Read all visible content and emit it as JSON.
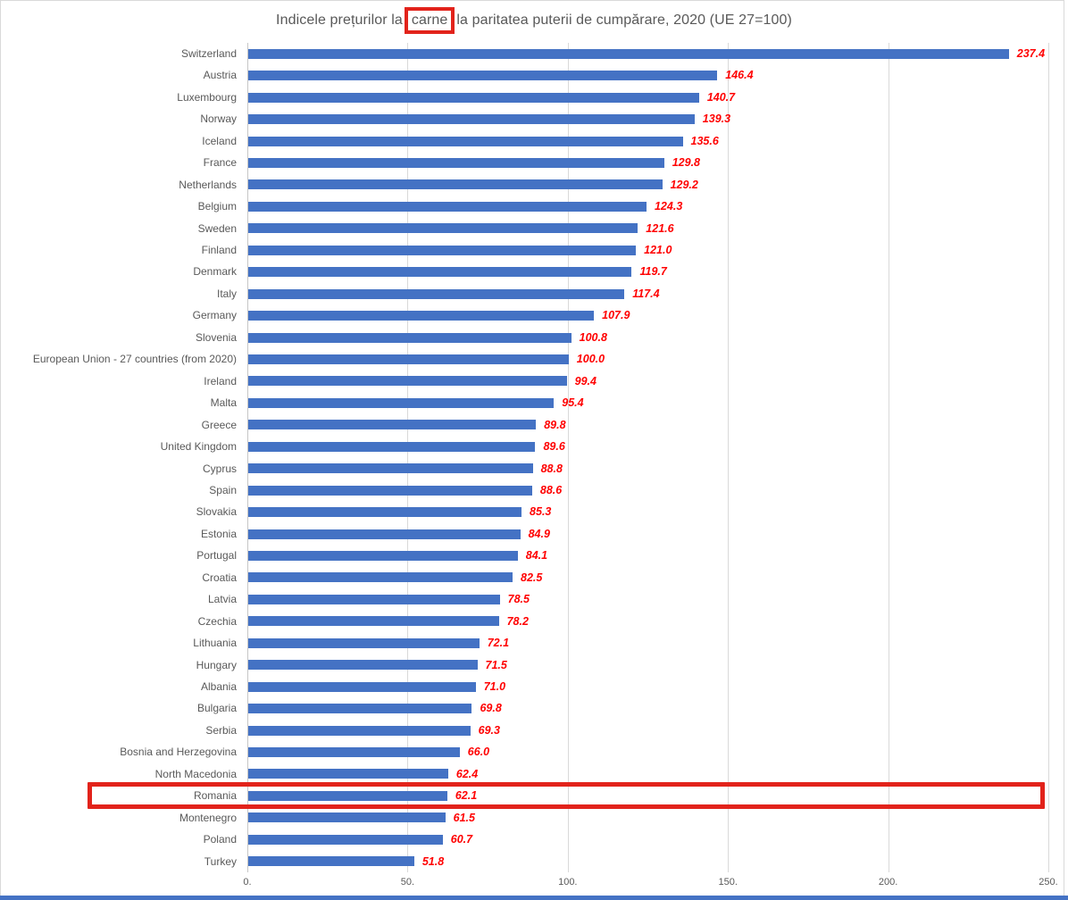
{
  "title": {
    "prefix": "Indicele prețurilor la ",
    "highlight": "carne",
    "suffix": " la paritatea puterii de cumpărare, 2020 (UE 27=100)"
  },
  "colors": {
    "bar_blue": "#4472C4",
    "value_red": "#FF0000",
    "annotation_red": "#E2231B",
    "text_gray": "#595959",
    "gridline_gray": "#D9D9D9"
  },
  "chart_data": {
    "type": "bar",
    "orientation": "horizontal",
    "title": "Indicele prețurilor la carne la paritatea puterii de cumpărare, 2020 (UE 27=100)",
    "categories": [
      "Switzerland",
      "Austria",
      "Luxembourg",
      "Norway",
      "Iceland",
      "France",
      "Netherlands",
      "Belgium",
      "Sweden",
      "Finland",
      "Denmark",
      "Italy",
      "Germany",
      "Slovenia",
      "European Union - 27 countries (from 2020)",
      "Ireland",
      "Malta",
      "Greece",
      "United Kingdom",
      "Cyprus",
      "Spain",
      "Slovakia",
      "Estonia",
      "Portugal",
      "Croatia",
      "Latvia",
      "Czechia",
      "Lithuania",
      "Hungary",
      "Albania",
      "Bulgaria",
      "Serbia",
      "Bosnia and Herzegovina",
      "North Macedonia",
      "Romania",
      "Montenegro",
      "Poland",
      "Turkey"
    ],
    "values": [
      237.4,
      146.4,
      140.7,
      139.3,
      135.6,
      129.8,
      129.2,
      124.3,
      121.6,
      121.0,
      119.7,
      117.4,
      107.9,
      100.8,
      100.0,
      99.4,
      95.4,
      89.8,
      89.6,
      88.8,
      88.6,
      85.3,
      84.9,
      84.1,
      82.5,
      78.5,
      78.2,
      72.1,
      71.5,
      71.0,
      69.8,
      69.3,
      66.0,
      62.4,
      62.1,
      61.5,
      60.7,
      51.8
    ],
    "xlim": [
      0,
      250
    ],
    "x_ticks": [
      0,
      50,
      100,
      150,
      200,
      250
    ],
    "x_tick_labels": [
      "0.",
      "50.",
      "100.",
      "150.",
      "200.",
      "250."
    ],
    "grid": "vertical-gridlines",
    "legend": "none",
    "value_labels_shown": true,
    "annotations": {
      "highlighted_category": "Romania",
      "highlighted_title_word": "carne"
    }
  }
}
